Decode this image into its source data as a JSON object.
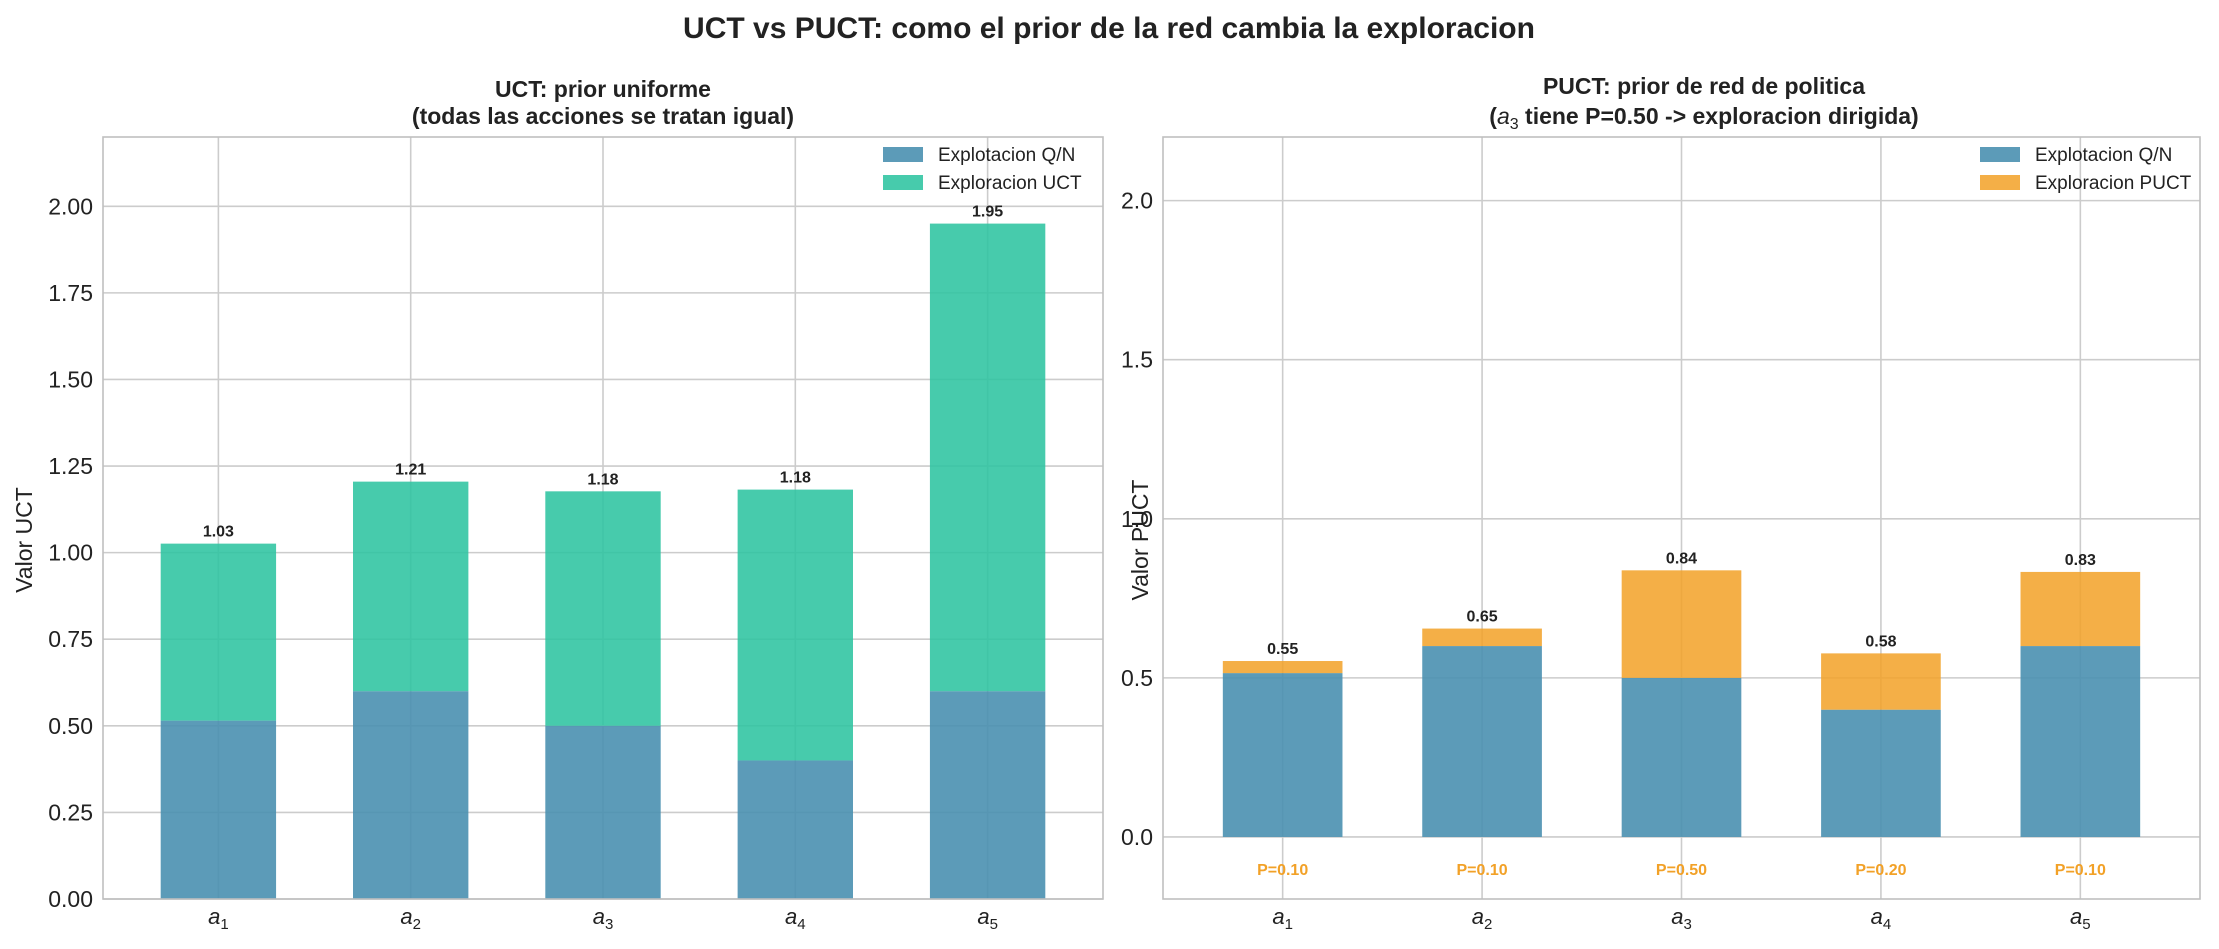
{
  "figure": {
    "title": "UCT vs PUCT: como el prior de la red cambia la exploracion"
  },
  "colors": {
    "exploitation": "#4a90b0",
    "exploration_uct": "#2ec4a0",
    "exploration_puct": "#f2a127",
    "prior_label": "#f2a127"
  },
  "chart_data": [
    {
      "type": "bar",
      "stacked": true,
      "title_line1": "UCT: prior uniforme",
      "title_line2": "(todas las acciones se tratan igual)",
      "xlabel": "",
      "ylabel": "Valor UCT",
      "categories": [
        {
          "base": "a",
          "sub": "1"
        },
        {
          "base": "a",
          "sub": "2"
        },
        {
          "base": "a",
          "sub": "3"
        },
        {
          "base": "a",
          "sub": "4"
        },
        {
          "base": "a",
          "sub": "5"
        }
      ],
      "series": [
        {
          "name": "Explotacion Q/N",
          "values": [
            0.515,
            0.6,
            0.5,
            0.4,
            0.6
          ]
        },
        {
          "name": "Exploracion UCT",
          "values": [
            0.511,
            0.605,
            0.677,
            0.782,
            1.35
          ]
        }
      ],
      "totals_labels": [
        "1.03",
        "1.21",
        "1.18",
        "1.18",
        "1.95"
      ],
      "ylim": [
        0,
        2.2
      ],
      "yticks": [
        "0.00",
        "0.25",
        "0.50",
        "0.75",
        "1.00",
        "1.25",
        "1.50",
        "1.75",
        "2.00"
      ],
      "grid": true,
      "legend_position": "top-right"
    },
    {
      "type": "bar",
      "stacked": true,
      "title_line1": "PUCT: prior de red de politica",
      "title_line2_pre": "(",
      "title_line2_var": "a",
      "title_line2_sub": "3",
      "title_line2_post": " tiene P=0.50 -> exploracion dirigida)",
      "xlabel": "",
      "ylabel": "Valor PUCT",
      "categories": [
        {
          "base": "a",
          "sub": "1"
        },
        {
          "base": "a",
          "sub": "2"
        },
        {
          "base": "a",
          "sub": "3"
        },
        {
          "base": "a",
          "sub": "4"
        },
        {
          "base": "a",
          "sub": "5"
        }
      ],
      "series": [
        {
          "name": "Explotacion Q/N",
          "values": [
            0.515,
            0.6,
            0.5,
            0.4,
            0.6
          ]
        },
        {
          "name": "Exploracion PUCT",
          "values": [
            0.038,
            0.055,
            0.338,
            0.177,
            0.233
          ]
        }
      ],
      "totals_labels": [
        "0.55",
        "0.65",
        "0.84",
        "0.58",
        "0.83"
      ],
      "prior_labels": [
        "P=0.10",
        "P=0.10",
        "P=0.50",
        "P=0.20",
        "P=0.10"
      ],
      "prior_label_y": -0.1,
      "ylim": [
        -0.195,
        2.2
      ],
      "yticks": [
        "0.0",
        "0.5",
        "1.0",
        "1.5",
        "2.0"
      ],
      "grid": true,
      "legend_position": "top-right"
    }
  ]
}
